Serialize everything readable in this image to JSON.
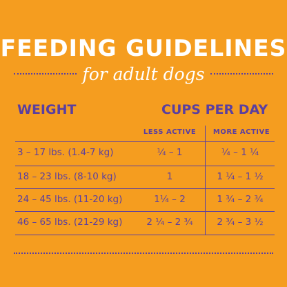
{
  "title": "FEEDING GUIDELINES",
  "subtitle": "for adult dogs",
  "table": {
    "weight_header": "WEIGHT",
    "cups_header": "CUPS PER DAY",
    "less_active_header": "LESS ACTIVE",
    "more_active_header": "MORE ACTIVE",
    "rows": [
      {
        "weight": "3 – 17 lbs. (1.4-7 kg)",
        "less": "¼ – 1",
        "more": "¼ – 1 ¼"
      },
      {
        "weight": "18 – 23 lbs. (8-10 kg)",
        "less": "1",
        "more": "1 ¼ – 1 ½"
      },
      {
        "weight": "24 – 45 lbs. (11-20 kg)",
        "less": "1¼ – 2",
        "more": "1 ¾ – 2 ¾"
      },
      {
        "weight": "46 – 65 lbs. (21-29 kg)",
        "less": "2 ¼ – 2 ¾",
        "more": "2 ¾ – 3 ½"
      }
    ]
  },
  "colors": {
    "background": "#f59d1f",
    "text_purple": "#5a3fa0",
    "title_white": "#ffffff"
  }
}
